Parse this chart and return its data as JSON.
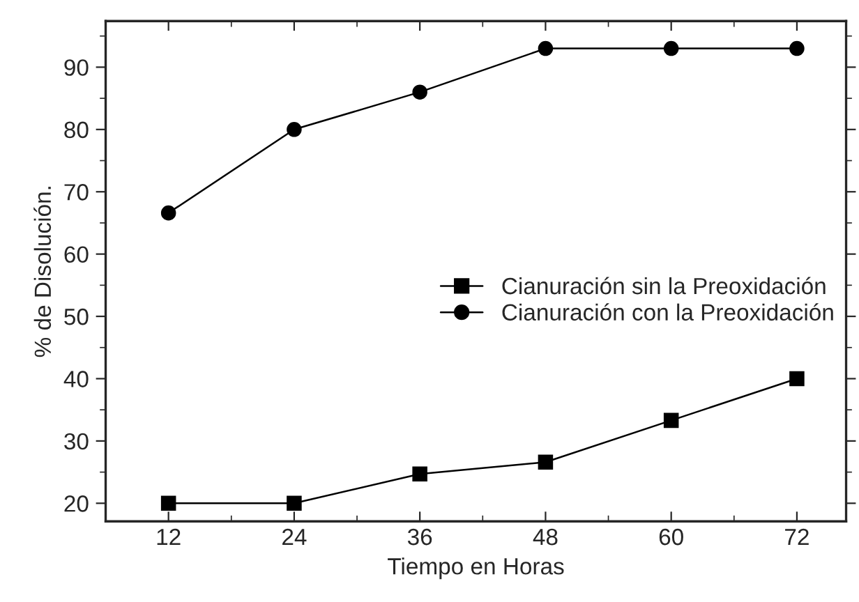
{
  "chart_data": {
    "type": "line",
    "xlabel": "Tiempo en Horas",
    "ylabel": "% de Disolución.",
    "x": [
      12,
      24,
      36,
      48,
      60,
      72
    ],
    "series": [
      {
        "name": "Cianuración sin la Preoxidación",
        "color": "#000000",
        "marker": "square",
        "values": [
          20,
          20,
          24.7,
          26.6,
          33.3,
          40
        ]
      },
      {
        "name": "Cianuración con la Preoxidación",
        "color": "#000000",
        "marker": "circle",
        "values": [
          66.6,
          80,
          86,
          93,
          93,
          93
        ]
      }
    ],
    "xlim": [
      6,
      76.7
    ],
    "xticks": [
      12,
      24,
      36,
      48,
      60,
      72
    ],
    "ylim": [
      17.1,
      97.4
    ],
    "yticks": [
      20,
      30,
      40,
      50,
      60,
      70,
      80,
      90
    ],
    "grid": false,
    "legend": "right",
    "line_style": "solid"
  }
}
